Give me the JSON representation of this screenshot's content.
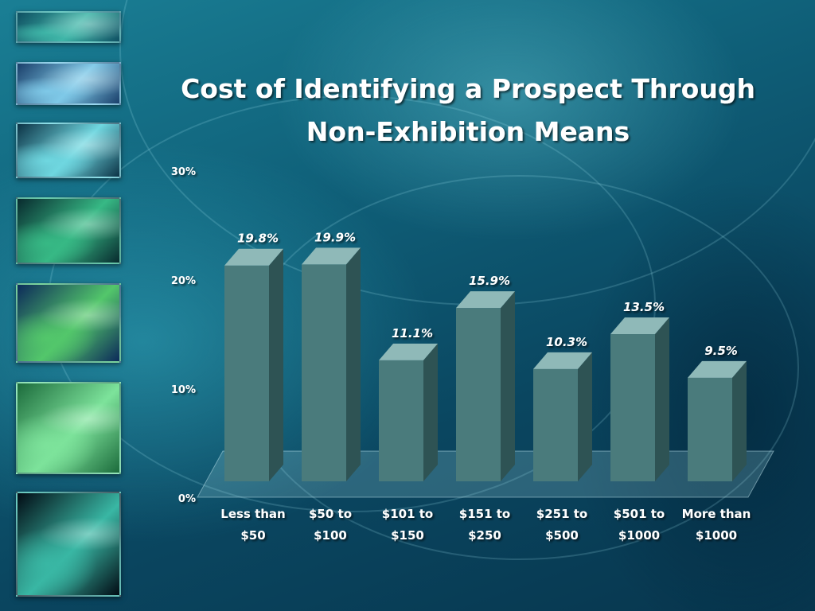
{
  "colors": {
    "bar_front": "#4a7b7c",
    "bar_top": "#8fb9b8",
    "bar_side": "#2e5354",
    "floor": "rgba(170,225,230,0.22)"
  },
  "thumbnails": [
    {
      "name": "thumbnail-1",
      "c1": "#0f4f62",
      "c2": "#3fb6a8"
    },
    {
      "name": "thumbnail-2",
      "c1": "#1a3f6a",
      "c2": "#7fc9e8"
    },
    {
      "name": "thumbnail-3",
      "c1": "#0c3346",
      "c2": "#6fd7e0"
    },
    {
      "name": "thumbnail-4",
      "c1": "#082a2e",
      "c2": "#37b985"
    },
    {
      "name": "thumbnail-5",
      "c1": "#0c2a5a",
      "c2": "#53c76b"
    },
    {
      "name": "thumbnail-6",
      "c1": "#1c6b3c",
      "c2": "#7de39b"
    },
    {
      "name": "thumbnail-7",
      "c1": "#020b14",
      "c2": "#39b7a4"
    }
  ],
  "chart_data": {
    "type": "bar",
    "title_lines": [
      "Cost of Identifying a Prospect Through",
      "Non-Exhibition Means"
    ],
    "categories": [
      [
        "Less than",
        "$50"
      ],
      [
        "$50 to",
        "$100"
      ],
      [
        "$101 to",
        "$150"
      ],
      [
        "$151 to",
        "$250"
      ],
      [
        "$251 to",
        "$500"
      ],
      [
        "$501 to",
        "$1000"
      ],
      [
        "More than",
        "$1000"
      ]
    ],
    "values": [
      19.8,
      19.9,
      11.1,
      15.9,
      10.3,
      13.5,
      9.5
    ],
    "value_labels": [
      "19.8%",
      "19.9%",
      "11.1%",
      "15.9%",
      "10.3%",
      "13.5%",
      "9.5%"
    ],
    "yticks": [
      {
        "value": 0,
        "label": "0%"
      },
      {
        "value": 10,
        "label": "10%"
      },
      {
        "value": 20,
        "label": "20%"
      },
      {
        "value": 30,
        "label": "30%"
      }
    ],
    "ylim": [
      0,
      30
    ],
    "grid": false,
    "style": "3d-column"
  }
}
